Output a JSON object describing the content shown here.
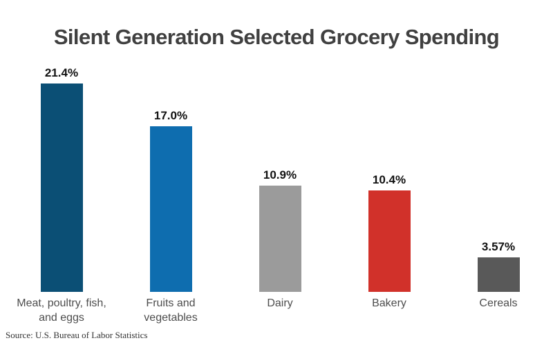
{
  "title": "Silent Generation Selected Grocery Spending",
  "source": "Source: U.S. Bureau of Labor Statistics",
  "chart_data": {
    "type": "bar",
    "title": "Silent Generation Selected Grocery Spending",
    "categories": [
      "Meat, poultry, fish, and eggs",
      "Fruits and vegetables",
      "Dairy",
      "Bakery",
      "Cereals"
    ],
    "category_label_lines": [
      [
        "Meat, poultry, fish,",
        "and eggs"
      ],
      [
        "Fruits and",
        "vegetables"
      ],
      [
        "Dairy"
      ],
      [
        "Bakery"
      ],
      [
        "Cereals"
      ]
    ],
    "values": [
      21.4,
      17.0,
      10.9,
      10.4,
      3.57
    ],
    "value_labels": [
      "21.4%",
      "17.0%",
      "10.9%",
      "10.4%",
      "3.57%"
    ],
    "bar_colors": [
      "#0b4f75",
      "#0e6daf",
      "#9b9b9b",
      "#d1312a",
      "#595959"
    ],
    "xlabel": "",
    "ylabel": "",
    "ylim": [
      0,
      23
    ],
    "grid": false,
    "legend": false,
    "axes_visible": false,
    "source_note": "Source: U.S. Bureau of Labor Statistics"
  },
  "colors": {
    "title_text": "#404040",
    "value_text": "#111111",
    "category_text": "#4d4d4d",
    "source_text": "#333333",
    "background": "#ffffff"
  }
}
